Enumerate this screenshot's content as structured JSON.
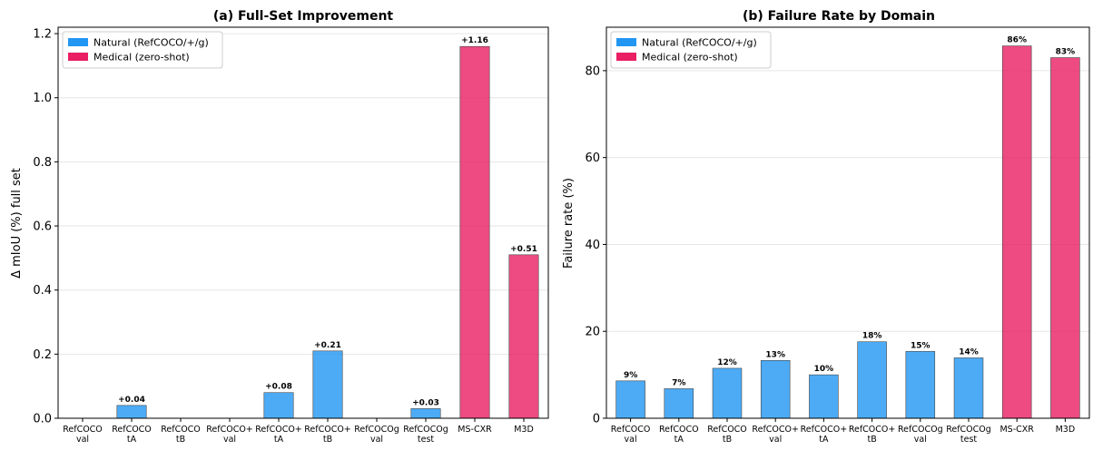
{
  "colors": {
    "natural": "#2196F3",
    "medical": "#E91E63"
  },
  "chart_data": [
    {
      "type": "bar",
      "title": "(a) Full-Set Improvement",
      "ylabel": "Δ mIoU (%) full set",
      "ylim": [
        0,
        1.22
      ],
      "yticks": [
        "0.0",
        "0.2",
        "0.4",
        "0.6",
        "0.8",
        "1.0",
        "1.2"
      ],
      "ytick_values": [
        0,
        0.2,
        0.4,
        0.6,
        0.8,
        1.0,
        1.2
      ],
      "grid": true,
      "legend_position": "top-left",
      "legend": [
        "Natural (RefCOCO/+/g)",
        "Medical (zero-shot)"
      ],
      "categories": [
        [
          "RefCOCO",
          "val"
        ],
        [
          "RefCOCO",
          "tA"
        ],
        [
          "RefCOCO",
          "tB"
        ],
        [
          "RefCOCO+",
          "val"
        ],
        [
          "RefCOCO+",
          "tA"
        ],
        [
          "RefCOCO+",
          "tB"
        ],
        [
          "RefCOCOg",
          "val"
        ],
        [
          "RefCOCOg",
          "test"
        ],
        [
          "MS-CXR",
          ""
        ],
        [
          "M3D",
          ""
        ]
      ],
      "values": [
        0,
        0.04,
        0,
        0,
        0.08,
        0.21,
        0,
        0.03,
        1.16,
        0.51
      ],
      "groups": [
        "natural",
        "natural",
        "natural",
        "natural",
        "natural",
        "natural",
        "natural",
        "natural",
        "medical",
        "medical"
      ],
      "value_labels": [
        "",
        "+0.04",
        "",
        "",
        "+0.08",
        "+0.21",
        "",
        "+0.03",
        "+1.16",
        "+0.51"
      ]
    },
    {
      "type": "bar",
      "title": "(b) Failure Rate by Domain",
      "ylabel": "Failure rate (%)",
      "ylim": [
        0,
        90
      ],
      "yticks": [
        "0",
        "20",
        "40",
        "60",
        "80"
      ],
      "ytick_values": [
        0,
        20,
        40,
        60,
        80
      ],
      "grid": true,
      "legend_position": "top-left",
      "legend": [
        "Natural (RefCOCO/+/g)",
        "Medical (zero-shot)"
      ],
      "categories": [
        [
          "RefCOCO",
          "val"
        ],
        [
          "RefCOCO",
          "tA"
        ],
        [
          "RefCOCO",
          "tB"
        ],
        [
          "RefCOCO+",
          "val"
        ],
        [
          "RefCOCO+",
          "tA"
        ],
        [
          "RefCOCO+",
          "tB"
        ],
        [
          "RefCOCOg",
          "val"
        ],
        [
          "RefCOCOg",
          "test"
        ],
        [
          "MS-CXR",
          ""
        ],
        [
          "M3D",
          ""
        ]
      ],
      "values": [
        8.6,
        6.8,
        11.5,
        13.3,
        10.0,
        17.6,
        15.4,
        13.9,
        85.7,
        83.0
      ],
      "groups": [
        "natural",
        "natural",
        "natural",
        "natural",
        "natural",
        "natural",
        "natural",
        "natural",
        "medical",
        "medical"
      ],
      "value_labels": [
        "9%",
        "7%",
        "12%",
        "13%",
        "10%",
        "18%",
        "15%",
        "14%",
        "86%",
        "83%"
      ]
    }
  ]
}
